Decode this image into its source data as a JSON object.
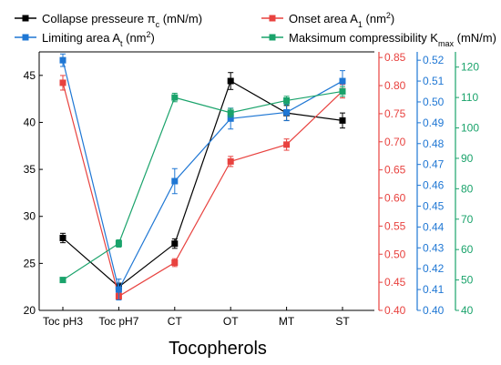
{
  "chart_data": {
    "type": "line",
    "categories": [
      "Toc pH3",
      "Toc pH7",
      "CT",
      "OT",
      "MT",
      "ST"
    ],
    "xlabel": "Tocopherols",
    "grid": false,
    "legend_position": "top",
    "series": [
      {
        "name": "Collapse presseure πc (mN/m)",
        "legend_html": "Collapse presseure π<tspan baseline-shift='sub' font-size='9'>c</tspan> (mN/m)",
        "color": "#000000",
        "marker": "square",
        "axis": "y1",
        "values": [
          27.7,
          22.5,
          27.1,
          44.4,
          41.0,
          40.2
        ],
        "errors": [
          0.5,
          0.4,
          0.5,
          0.9,
          0.8,
          0.8
        ]
      },
      {
        "name": "Onset area A1 (nm2)",
        "legend_html": "Onset area A<tspan baseline-shift='sub' font-size='9'>1</tspan> (nm<tspan baseline-shift='super' font-size='9'>2</tspan>)",
        "color": "#e8423f",
        "marker": "square",
        "axis": "y2",
        "values": [
          0.805,
          0.425,
          0.485,
          0.665,
          0.695,
          0.79
        ],
        "errors": [
          0.013,
          0.006,
          0.007,
          0.009,
          0.01,
          0.012
        ]
      },
      {
        "name": "Limiting area At (nm2)",
        "legend_html": "Limiting area A<tspan baseline-shift='sub' font-size='9'>t</tspan> (nm<tspan baseline-shift='super' font-size='9'>2</tspan>)",
        "color": "#1f77d4",
        "marker": "square",
        "axis": "y3",
        "values": [
          0.52,
          0.41,
          0.462,
          0.492,
          0.495,
          0.51
        ],
        "errors": [
          0.003,
          0.005,
          0.006,
          0.005,
          0.004,
          0.005
        ]
      },
      {
        "name": "Maksimum compressibility Kmax (mN/m)",
        "legend_html": "Maksimum compressibility K<tspan baseline-shift='sub' font-size='9'>max</tspan> (mN/m)",
        "color": "#1aa36b",
        "marker": "square",
        "axis": "y4",
        "values": [
          50,
          62,
          110,
          105,
          109,
          112
        ],
        "errors": [
          0.6,
          1.2,
          1.4,
          1.4,
          1.4,
          1.6
        ]
      }
    ],
    "axes": {
      "y1": {
        "min": 20,
        "max": 47.5,
        "ticks": [
          20,
          25,
          30,
          35,
          40,
          45
        ],
        "color": "#000000"
      },
      "y2": {
        "min": 0.4,
        "max": 0.86,
        "ticks": [
          0.4,
          0.45,
          0.5,
          0.55,
          0.6,
          0.65,
          0.7,
          0.75,
          0.8,
          0.85
        ],
        "color": "#e8423f"
      },
      "y3": {
        "min": 0.4,
        "max": 0.524,
        "ticks": [
          0.4,
          0.41,
          0.42,
          0.43,
          0.44,
          0.45,
          0.46,
          0.47,
          0.48,
          0.49,
          0.5,
          0.51,
          0.52
        ],
        "color": "#1f77d4"
      },
      "y4": {
        "min": 40,
        "max": 125,
        "ticks": [
          40,
          50,
          60,
          70,
          80,
          90,
          100,
          110,
          120
        ],
        "color": "#1aa36b"
      }
    }
  }
}
